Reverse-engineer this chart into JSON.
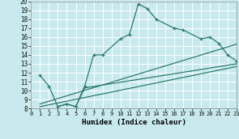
{
  "xlabel": "Humidex (Indice chaleur)",
  "bg_color": "#c8eaee",
  "grid_color": "#ffffff",
  "line_color": "#2d7a6a",
  "xlim": [
    0,
    23
  ],
  "ylim": [
    8,
    20
  ],
  "xticks": [
    0,
    1,
    2,
    3,
    4,
    5,
    6,
    7,
    8,
    9,
    10,
    11,
    12,
    13,
    14,
    15,
    16,
    17,
    18,
    19,
    20,
    21,
    22,
    23
  ],
  "yticks": [
    8,
    9,
    10,
    11,
    12,
    13,
    14,
    15,
    16,
    17,
    18,
    19,
    20
  ],
  "main_x": [
    1,
    2,
    3,
    4,
    5,
    6,
    7,
    8,
    10,
    11,
    12,
    13,
    14,
    16,
    17,
    19,
    20,
    21,
    22,
    23
  ],
  "main_y": [
    11.7,
    10.5,
    8.2,
    8.5,
    8.2,
    10.5,
    14.0,
    14.0,
    15.8,
    16.3,
    19.7,
    19.2,
    18.0,
    17.0,
    16.8,
    15.8,
    16.0,
    15.3,
    14.0,
    13.3
  ],
  "trend1_x": [
    1,
    23
  ],
  "trend1_y": [
    8.5,
    15.2
  ],
  "trend2_x": [
    1,
    23
  ],
  "trend2_y": [
    8.2,
    12.7
  ],
  "extra_x": [
    3,
    4,
    5,
    6,
    23
  ],
  "extra_y": [
    8.2,
    8.5,
    8.2,
    10.3,
    13.0
  ]
}
